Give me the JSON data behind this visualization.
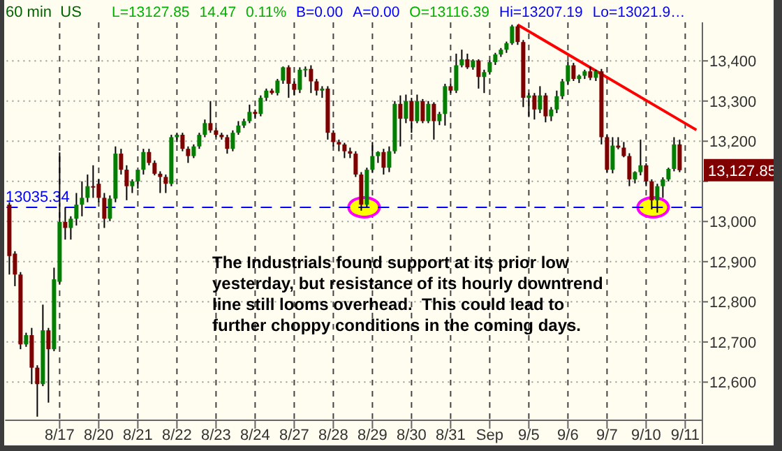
{
  "chart_data": {
    "type": "candlestick",
    "title": "60 min  US",
    "subtitle": "L=13127.85  14.47  0.11%  B=0.00  A=0.00  O=13116.39  Hi=13207.19  Lo=13021.9…",
    "categories": [
      null,
      null,
      null,
      null,
      null,
      null,
      null,
      null,
      null,
      "8/17",
      null,
      null,
      null,
      null,
      null,
      null,
      "8/20",
      null,
      null,
      null,
      null,
      null,
      null,
      "8/21",
      null,
      null,
      null,
      null,
      null,
      null,
      "8/22",
      null,
      null,
      null,
      null,
      null,
      null,
      "8/23",
      null,
      null,
      null,
      null,
      null,
      null,
      "8/24",
      null,
      null,
      null,
      null,
      null,
      null,
      "8/27",
      null,
      null,
      null,
      null,
      null,
      null,
      "8/28",
      null,
      null,
      null,
      null,
      null,
      null,
      "8/29",
      null,
      null,
      null,
      null,
      null,
      null,
      "8/30",
      null,
      null,
      null,
      null,
      null,
      null,
      "8/31",
      null,
      null,
      null,
      null,
      null,
      null,
      "Sep",
      null,
      null,
      null,
      null,
      null,
      null,
      "9/5",
      null,
      null,
      null,
      null,
      null,
      null,
      "9/6",
      null,
      null,
      null,
      null,
      null,
      null,
      "9/7",
      null,
      null,
      null,
      null,
      null,
      null,
      "9/10",
      null,
      null,
      null,
      null,
      null,
      null,
      "9/11",
      null,
      null
    ],
    "ohlc": [
      [
        13042,
        13048,
        12868,
        12914
      ],
      [
        12920,
        12926,
        12839,
        12868
      ],
      [
        12868,
        12874,
        12682,
        12694
      ],
      [
        12694,
        12723,
        12688,
        12717
      ],
      [
        12717,
        12735,
        12595,
        12636
      ],
      [
        12636,
        12642,
        12514,
        12595
      ],
      [
        12595,
        12793,
        12590,
        12729
      ],
      [
        12729,
        12735,
        12549,
        12682
      ],
      [
        12682,
        12885,
        12677,
        12856
      ],
      [
        12850,
        13172,
        12845,
        12999
      ],
      [
        12999,
        13036,
        12955,
        12984
      ],
      [
        12984,
        13013,
        12955,
        13007
      ],
      [
        13007,
        13071,
        12990,
        13042
      ],
      [
        13042,
        13100,
        13013,
        13059
      ],
      [
        13059,
        13117,
        13048,
        13088
      ],
      [
        13088,
        13140,
        13059,
        13085
      ],
      [
        13094,
        13105,
        13048,
        13059
      ],
      [
        13059,
        13071,
        12984,
        13007
      ],
      [
        13007,
        13065,
        13001,
        13057
      ],
      [
        13057,
        13187,
        13048,
        13169
      ],
      [
        13169,
        13181,
        13117,
        13129
      ],
      [
        13129,
        13140,
        13053,
        13088
      ],
      [
        13088,
        13105,
        13071,
        13100
      ],
      [
        13100,
        13129,
        13082,
        13129
      ],
      [
        13129,
        13181,
        13117,
        13173
      ],
      [
        13173,
        13181,
        13140,
        13146
      ],
      [
        13146,
        13152,
        13115,
        13119
      ],
      [
        13119,
        13125,
        13071,
        13111
      ],
      [
        13111,
        13117,
        13071,
        13094
      ],
      [
        13094,
        13216,
        13088,
        13210
      ],
      [
        13210,
        13221,
        13198,
        13216
      ],
      [
        13216,
        13221,
        13175,
        13181
      ],
      [
        13181,
        13187,
        13146,
        13163
      ],
      [
        13163,
        13192,
        13158,
        13187
      ],
      [
        13187,
        13221,
        13181,
        13216
      ],
      [
        13216,
        13254,
        13210,
        13245
      ],
      [
        13245,
        13300,
        13221,
        13227
      ],
      [
        13227,
        13233,
        13210,
        13216
      ],
      [
        13216,
        13221,
        13204,
        13210
      ],
      [
        13210,
        13216,
        13169,
        13181
      ],
      [
        13181,
        13227,
        13175,
        13221
      ],
      [
        13221,
        13250,
        13216,
        13239
      ],
      [
        13239,
        13256,
        13233,
        13250
      ],
      [
        13250,
        13291,
        13245,
        13273
      ],
      [
        13273,
        13279,
        13256,
        13268
      ],
      [
        13268,
        13314,
        13262,
        13308
      ],
      [
        13308,
        13331,
        13300,
        13326
      ],
      [
        13326,
        13331,
        13316,
        13320
      ],
      [
        13320,
        13355,
        13314,
        13351
      ],
      [
        13351,
        13386,
        13343,
        13384
      ],
      [
        13384,
        13389,
        13308,
        13343
      ],
      [
        13343,
        13349,
        13314,
        13328
      ],
      [
        13328,
        13384,
        13320,
        13378
      ],
      [
        13378,
        13386,
        13360,
        13380
      ],
      [
        13380,
        13389,
        13320,
        13349
      ],
      [
        13349,
        13355,
        13314,
        13326
      ],
      [
        13326,
        13337,
        13308,
        13331
      ],
      [
        13331,
        13337,
        13204,
        13221
      ],
      [
        13221,
        13227,
        13187,
        13198
      ],
      [
        13198,
        13204,
        13175,
        13192
      ],
      [
        13192,
        13196,
        13158,
        13175
      ],
      [
        13175,
        13184,
        13158,
        13169
      ],
      [
        13169,
        13175,
        13111,
        13117
      ],
      [
        13117,
        13123,
        13027,
        13042
      ],
      [
        13042,
        13134,
        13036,
        13129
      ],
      [
        13129,
        13198,
        13123,
        13163
      ],
      [
        13163,
        13175,
        13146,
        13173
      ],
      [
        13173,
        13181,
        13117,
        13134
      ],
      [
        13134,
        13187,
        13123,
        13175
      ],
      [
        13175,
        13300,
        13169,
        13293
      ],
      [
        13293,
        13314,
        13187,
        13256
      ],
      [
        13256,
        13316,
        13245,
        13300
      ],
      [
        13300,
        13308,
        13221,
        13250
      ],
      [
        13250,
        13316,
        13245,
        13300
      ],
      [
        13300,
        13305,
        13245,
        13250
      ],
      [
        13250,
        13300,
        13245,
        13293
      ],
      [
        13293,
        13297,
        13204,
        13250
      ],
      [
        13250,
        13273,
        13240,
        13268
      ],
      [
        13268,
        13343,
        13239,
        13337
      ],
      [
        13337,
        13343,
        13320,
        13326
      ],
      [
        13326,
        13418,
        13320,
        13389
      ],
      [
        13389,
        13428,
        13384,
        13404
      ],
      [
        13404,
        13418,
        13380,
        13384
      ],
      [
        13384,
        13404,
        13378,
        13401
      ],
      [
        13401,
        13404,
        13331,
        13360
      ],
      [
        13360,
        13378,
        13320,
        13372
      ],
      [
        13372,
        13401,
        13366,
        13397
      ],
      [
        13397,
        13420,
        13390,
        13416
      ],
      [
        13416,
        13432,
        13410,
        13428
      ],
      [
        13428,
        13448,
        13420,
        13444
      ],
      [
        13444,
        13490,
        13440,
        13486
      ],
      [
        13486,
        13490,
        13440,
        13447
      ],
      [
        13447,
        13452,
        13285,
        13308
      ],
      [
        13308,
        13320,
        13262,
        13314
      ],
      [
        13314,
        13320,
        13254,
        13279
      ],
      [
        13279,
        13337,
        13270,
        13314
      ],
      [
        13314,
        13320,
        13247,
        13262
      ],
      [
        13262,
        13285,
        13250,
        13279
      ],
      [
        13279,
        13326,
        13270,
        13312
      ],
      [
        13312,
        13355,
        13305,
        13349
      ],
      [
        13349,
        13398,
        13340,
        13389
      ],
      [
        13389,
        13395,
        13350,
        13355
      ],
      [
        13355,
        13366,
        13345,
        13363
      ],
      [
        13363,
        13378,
        13355,
        13374
      ],
      [
        13374,
        13386,
        13352,
        13358
      ],
      [
        13358,
        13378,
        13350,
        13374
      ],
      [
        13374,
        13380,
        13192,
        13210
      ],
      [
        13210,
        13215,
        13123,
        13129
      ],
      [
        13129,
        13210,
        13120,
        13189
      ],
      [
        13189,
        13210,
        13180,
        13184
      ],
      [
        13184,
        13198,
        13160,
        13163
      ],
      [
        13163,
        13170,
        13088,
        13105
      ],
      [
        13105,
        13125,
        13095,
        13123
      ],
      [
        13123,
        13204,
        13115,
        13140
      ],
      [
        13140,
        13145,
        13088,
        13100
      ],
      [
        13100,
        13105,
        13030,
        13053
      ],
      [
        13053,
        13094,
        13022,
        13088
      ],
      [
        13088,
        13110,
        13059,
        13105
      ],
      [
        13105,
        13134,
        13100,
        13131
      ],
      [
        13131,
        13210,
        13125,
        13192
      ],
      [
        13192,
        13204,
        13123,
        13127.85
      ],
      null,
      null,
      null
    ],
    "series": [
      {
        "type": "line",
        "color": "#ff0000",
        "values": [
          null,
          null,
          null,
          null,
          null,
          null,
          null,
          null,
          null,
          null,
          null,
          null,
          null,
          null,
          null,
          null,
          null,
          null,
          null,
          null,
          null,
          null,
          null,
          null,
          null,
          null,
          null,
          null,
          null,
          null,
          null,
          null,
          null,
          null,
          null,
          null,
          null,
          null,
          null,
          null,
          null,
          null,
          null,
          null,
          null,
          null,
          null,
          null,
          null,
          null,
          null,
          null,
          null,
          null,
          null,
          null,
          null,
          null,
          null,
          null,
          null,
          null,
          null,
          null,
          null,
          null,
          null,
          null,
          null,
          null,
          null,
          null,
          null,
          null,
          null,
          null,
          null,
          null,
          null,
          null,
          null,
          null,
          null,
          null,
          null,
          null,
          null,
          null,
          null,
          null,
          null,
          13490,
          null,
          null,
          null,
          null,
          null,
          null,
          null,
          null,
          null,
          null,
          null,
          null,
          null,
          null,
          null,
          null,
          null,
          null,
          null,
          null,
          null,
          null,
          null,
          null,
          null,
          null,
          null,
          null,
          null,
          null,
          null,
          13228
        ]
      }
    ],
    "ylim": [
      12505,
      13496
    ],
    "yticks": [
      {
        "value": 12600,
        "label": "12,600"
      },
      {
        "value": 12700,
        "label": "12,700"
      },
      {
        "value": 12800,
        "label": "12,800"
      },
      {
        "value": 12900,
        "label": "12,900"
      },
      {
        "value": 13000,
        "label": "13,000"
      },
      {
        "value": 13100,
        "label": null
      },
      {
        "value": 13200,
        "label": "13,200"
      },
      {
        "value": 13300,
        "label": "13,300"
      },
      {
        "value": 13400,
        "label": "13,400"
      }
    ],
    "grid": true,
    "ref_lines": [
      {
        "axis": "y",
        "value": 13035.34,
        "label": "13035.34",
        "color": "#0000ff",
        "line_style": "dashed"
      }
    ],
    "annotations": [
      "13,127.85",
      "The Industrials found support at its prior low yesterday, but resistance of its hourly downtrend line still looms overhead.  This could lead to further choppy conditions in the coming days."
    ]
  }
}
